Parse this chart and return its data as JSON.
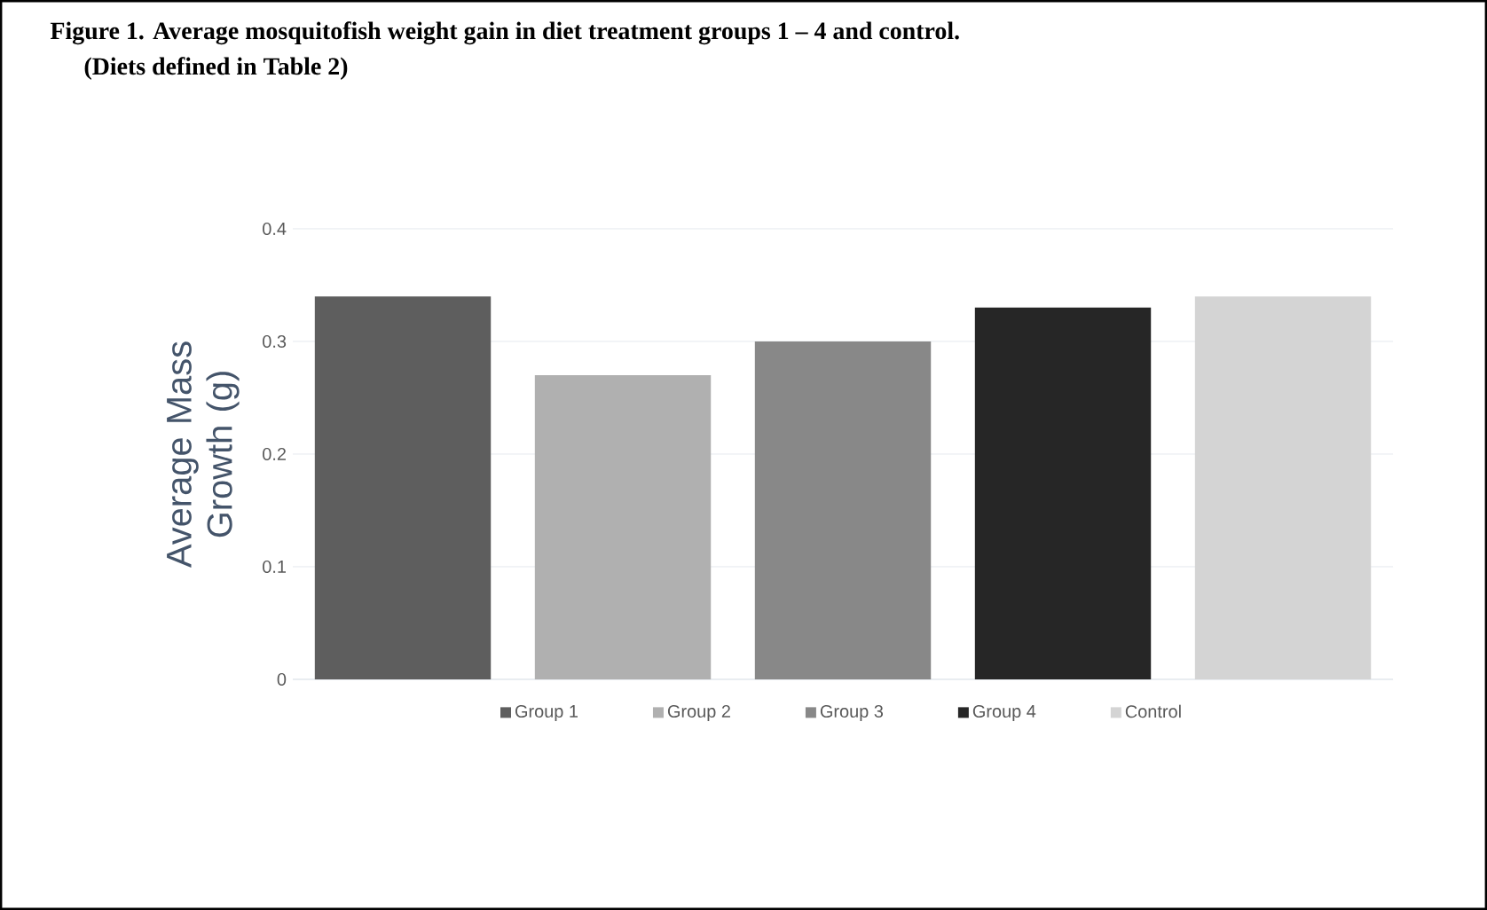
{
  "chart_data": {
    "type": "bar",
    "title": "Figure 1. Average mosquitofish weight gain in diet treatment groups 1 – 4 and control.",
    "subtitle": "(Diets defined in Table 2)",
    "ylabel": "Average Mass Growth (g)",
    "categories": [
      null
    ],
    "series": [
      {
        "name": "Group 1",
        "color": "#5e5e5e",
        "values": [
          0.34
        ]
      },
      {
        "name": "Group 2",
        "color": "#b0b0b0",
        "values": [
          0.27
        ]
      },
      {
        "name": "Group 3",
        "color": "#888888",
        "values": [
          0.3
        ]
      },
      {
        "name": "Group 4",
        "color": "#262626",
        "values": [
          0.33
        ]
      },
      {
        "name": "Control",
        "color": "#d4d4d4",
        "values": [
          0.34
        ]
      }
    ],
    "ylim": [
      0,
      0.4
    ],
    "yticks": [
      0,
      0.1,
      0.2,
      0.3,
      0.4
    ],
    "grid": "y",
    "legend": "bottom"
  }
}
